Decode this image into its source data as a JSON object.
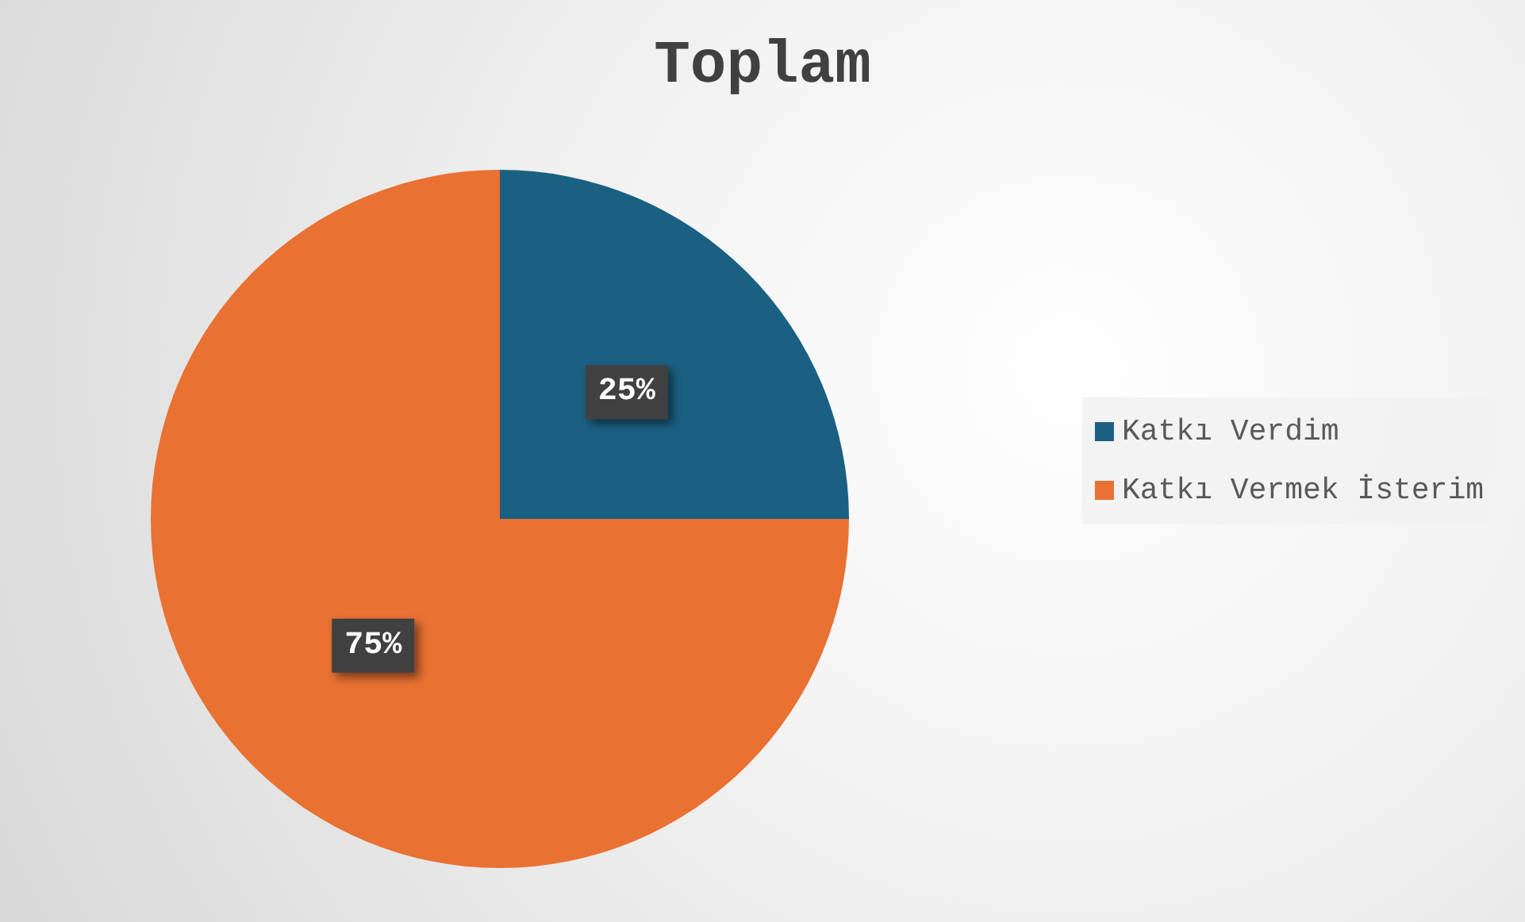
{
  "chart_data": {
    "type": "pie",
    "title": "Toplam",
    "categories": [
      "Katkı Verdim",
      "Katkı Vermek İsterim"
    ],
    "values": [
      25,
      75
    ],
    "value_labels": [
      "25%",
      "75%"
    ],
    "colors": [
      "#1a6083",
      "#e97132"
    ],
    "legend": "right"
  }
}
